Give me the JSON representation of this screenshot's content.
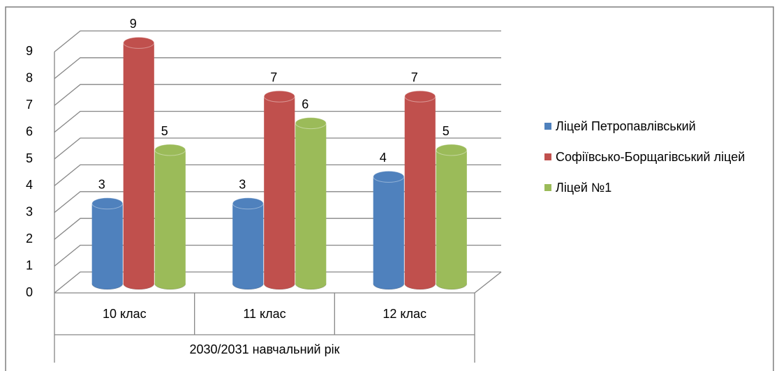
{
  "chart_data": {
    "type": "bar3d",
    "categories": [
      "10 клас",
      "11 клас",
      "12 клас"
    ],
    "group_label": "2030/2031 навчальний рік",
    "series": [
      {
        "name": "Ліцей Петропавлівський",
        "color": "#4f81bd",
        "values": [
          3,
          3,
          4
        ]
      },
      {
        "name": "Софіївсько-Борщагівський ліцей",
        "color": "#c0504d",
        "values": [
          9,
          7,
          7
        ]
      },
      {
        "name": "Ліцей №1",
        "color": "#9bbb59",
        "values": [
          5,
          6,
          5
        ]
      }
    ],
    "ylim": [
      0,
      9
    ],
    "yticks": [
      0,
      1,
      2,
      3,
      4,
      5,
      6,
      7,
      8,
      9
    ],
    "grid": true,
    "legend": "right"
  }
}
